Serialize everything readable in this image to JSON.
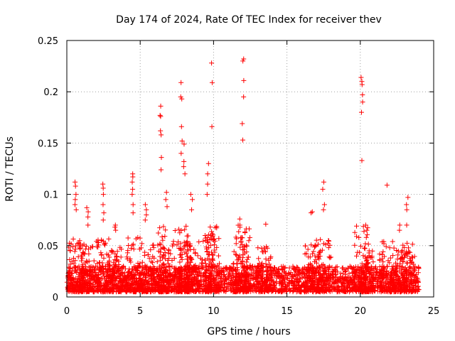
{
  "chart_data": {
    "type": "scatter",
    "title": "Day 174 of 2024, Rate Of TEC Index for receiver thev",
    "xlabel": "GPS time / hours",
    "ylabel": "ROTI / TECUs",
    "xlim": [
      0,
      25
    ],
    "ylim": [
      0,
      0.25
    ],
    "x_ticks": [
      0,
      5,
      10,
      15,
      20,
      25
    ],
    "x_tick_labels": [
      "0",
      "5",
      "10",
      "15",
      "20",
      "25"
    ],
    "y_ticks": [
      0,
      0.05,
      0.1,
      0.15,
      0.2,
      0.25
    ],
    "y_tick_labels": [
      "0",
      "0.05",
      "0.1",
      "0.15",
      "0.2",
      "0.25"
    ],
    "grid": true,
    "marker": "+",
    "color": "#ff0000",
    "x_range_data": [
      0,
      24
    ],
    "base_band": [
      0.005,
      0.03
    ],
    "spikes": [
      {
        "x": 0.6,
        "values": [
          0.112,
          0.108,
          0.1,
          0.095,
          0.09,
          0.085
        ]
      },
      {
        "x": 1.4,
        "values": [
          0.087,
          0.083,
          0.078,
          0.07
        ]
      },
      {
        "x": 2.5,
        "values": [
          0.11,
          0.106,
          0.1,
          0.09,
          0.082,
          0.075
        ]
      },
      {
        "x": 3.3,
        "values": [
          0.07,
          0.068,
          0.065
        ]
      },
      {
        "x": 4.5,
        "values": [
          0.12,
          0.117,
          0.112,
          0.105,
          0.1,
          0.09,
          0.082
        ]
      },
      {
        "x": 5.4,
        "values": [
          0.09,
          0.085,
          0.08,
          0.075
        ]
      },
      {
        "x": 6.4,
        "values": [
          0.186,
          0.177,
          0.176,
          0.162,
          0.158,
          0.136,
          0.124
        ]
      },
      {
        "x": 6.8,
        "values": [
          0.102,
          0.095,
          0.088
        ]
      },
      {
        "x": 7.8,
        "values": [
          0.209,
          0.195,
          0.193,
          0.166,
          0.152,
          0.14
        ]
      },
      {
        "x": 8.0,
        "values": [
          0.149,
          0.132,
          0.127,
          0.12
        ]
      },
      {
        "x": 8.5,
        "values": [
          0.1,
          0.095,
          0.085
        ]
      },
      {
        "x": 9.6,
        "values": [
          0.13,
          0.12,
          0.11,
          0.1
        ]
      },
      {
        "x": 9.9,
        "values": [
          0.228,
          0.209,
          0.166
        ]
      },
      {
        "x": 11.8,
        "values": [
          0.076,
          0.07
        ]
      },
      {
        "x": 12.0,
        "values": [
          0.232,
          0.23,
          0.211,
          0.195,
          0.169,
          0.153
        ]
      },
      {
        "x": 13.5,
        "values": [
          0.071
        ]
      },
      {
        "x": 16.7,
        "values": [
          0.083,
          0.082
        ]
      },
      {
        "x": 17.5,
        "values": [
          0.112,
          0.105,
          0.09,
          0.085
        ]
      },
      {
        "x": 20.1,
        "values": [
          0.214,
          0.21,
          0.207,
          0.197,
          0.19,
          0.18,
          0.133
        ]
      },
      {
        "x": 20.4,
        "values": [
          0.07,
          0.065,
          0.058
        ]
      },
      {
        "x": 21.8,
        "values": [
          0.109
        ]
      },
      {
        "x": 22.7,
        "values": [
          0.07,
          0.065
        ]
      },
      {
        "x": 23.2,
        "values": [
          0.097,
          0.09,
          0.085,
          0.07
        ]
      }
    ]
  }
}
